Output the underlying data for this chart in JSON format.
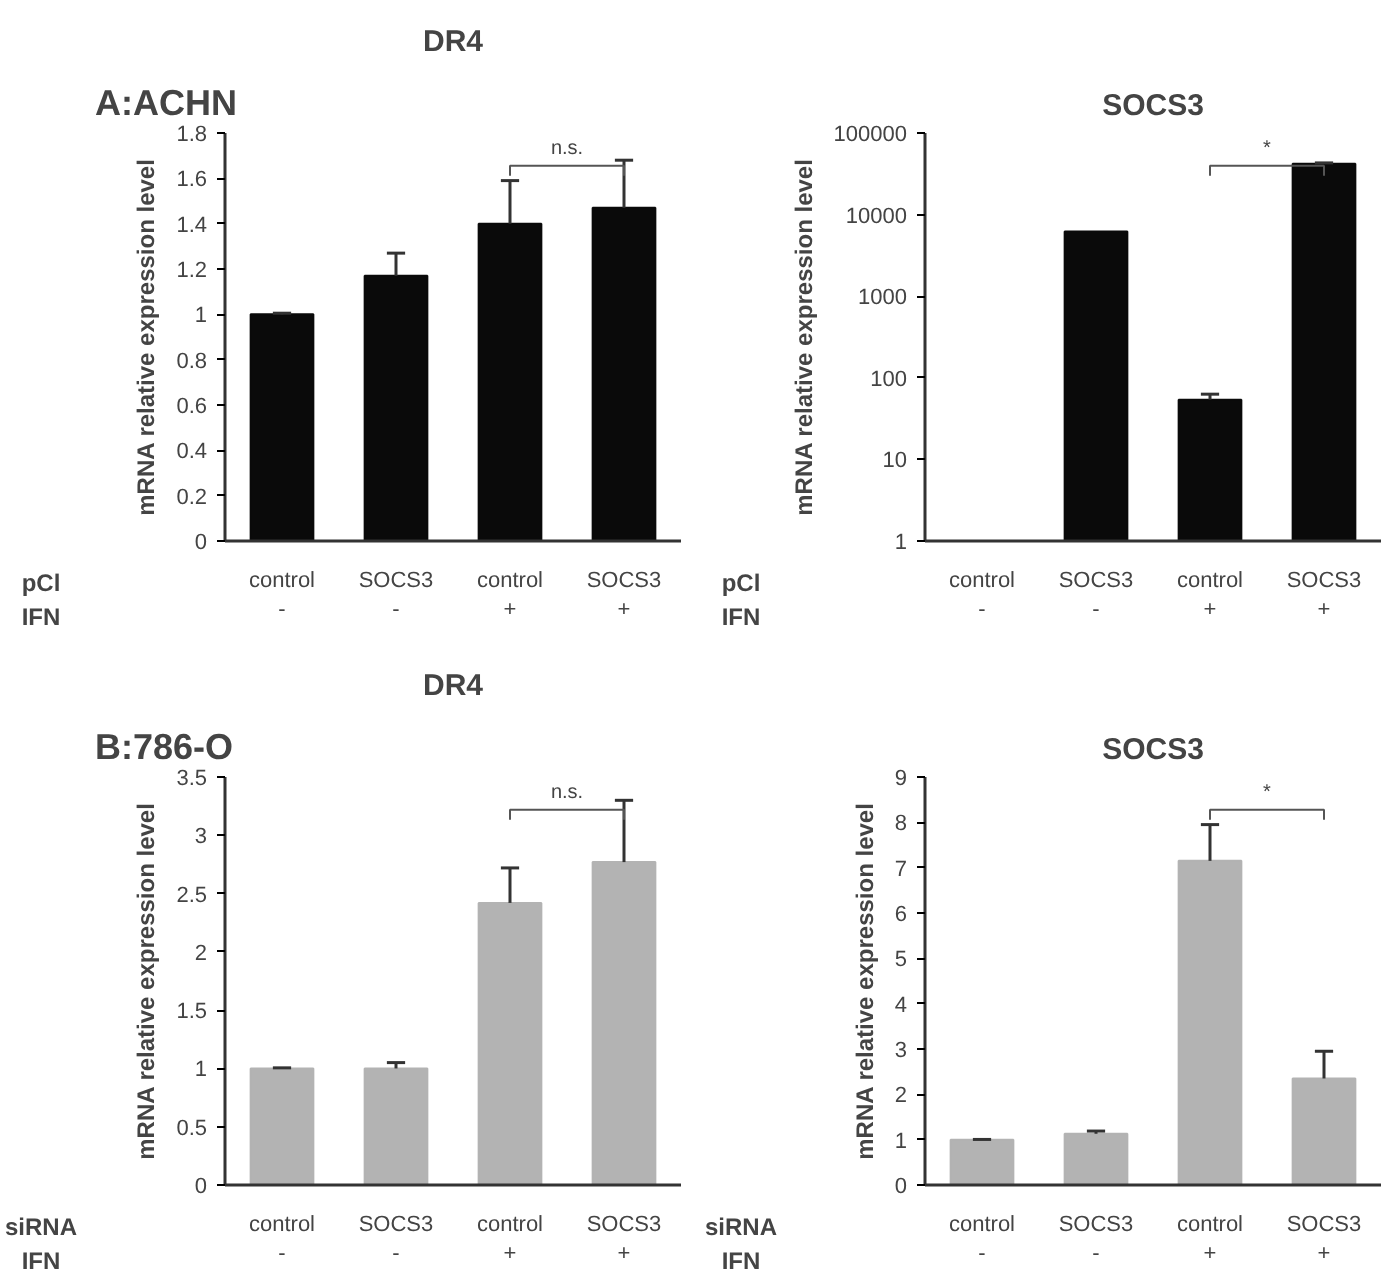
{
  "chart_data": [
    {
      "type": "bar",
      "subtitle": "A:ACHN",
      "title": "DR4",
      "ylabel": "mRNA relative expression level",
      "categories": [
        "control\n-",
        "SOCS3\n-",
        "control\n+",
        "SOCS3\n+"
      ],
      "values": [
        1.0,
        1.17,
        1.4,
        1.47
      ],
      "errors": [
        [
          1.0,
          1.005
        ],
        [
          1.17,
          1.27
        ],
        [
          1.4,
          1.59
        ],
        [
          1.47,
          1.68
        ]
      ],
      "color": "#0a0a0a",
      "ylim": [
        0,
        1.8
      ],
      "yticks": [
        0,
        0.2,
        0.4,
        0.6,
        0.8,
        1,
        1.2,
        1.4,
        1.6,
        1.8
      ],
      "grid": false,
      "annotations": [
        "pCl",
        "IFN",
        "n.s."
      ]
    },
    {
      "type": "bar",
      "title": "SOCS3",
      "ylabel": "mRNA relative expression level",
      "categories": [
        "control\n-",
        "SOCS3\n-",
        "control\n+",
        "SOCS3\n+"
      ],
      "values": [
        1,
        6200,
        54,
        42000
      ],
      "errors": [
        null,
        null,
        [
          54,
          63
        ],
        [
          42000,
          43000
        ]
      ],
      "color": "#0a0a0a",
      "log": true,
      "ylim": [
        1,
        100000
      ],
      "yticks": [
        1,
        10,
        100,
        1000,
        10000,
        100000
      ],
      "grid": false,
      "annotations": [
        "pCl",
        "IFN",
        "*"
      ]
    },
    {
      "type": "bar",
      "subtitle": "B:786-O",
      "title": "DR4",
      "ylabel": "mRNA relative expression level",
      "categories": [
        "control\n-",
        "SOCS3\n-",
        "control\n+",
        "SOCS3\n+"
      ],
      "values": [
        1.0,
        1.0,
        2.42,
        2.77
      ],
      "errors": [
        [
          1.0,
          1.005
        ],
        [
          1.0,
          1.05
        ],
        [
          2.42,
          2.72
        ],
        [
          2.77,
          3.3
        ]
      ],
      "color": "#b3b3b3",
      "ylim": [
        0,
        3.5
      ],
      "yticks": [
        0,
        0.5,
        1,
        1.5,
        2,
        2.5,
        3,
        3.5
      ],
      "grid": false,
      "annotations": [
        "siRNA",
        "IFN",
        "n.s."
      ]
    },
    {
      "type": "bar",
      "title": "SOCS3",
      "ylabel": "mRNA relative expression level",
      "categories": [
        "control\n-",
        "SOCS3\n-",
        "control\n+",
        "SOCS3\n+"
      ],
      "values": [
        1.0,
        1.13,
        7.15,
        2.35
      ],
      "errors": [
        [
          1.0,
          1.005
        ],
        [
          1.13,
          1.19
        ],
        [
          7.15,
          7.95
        ],
        [
          2.35,
          2.95
        ]
      ],
      "color": "#b3b3b3",
      "ylim": [
        0,
        9
      ],
      "yticks": [
        0,
        1,
        2,
        3,
        4,
        5,
        6,
        7,
        8,
        9
      ],
      "grid": false,
      "annotations": [
        "siRNA",
        "IFN",
        "*"
      ]
    }
  ]
}
